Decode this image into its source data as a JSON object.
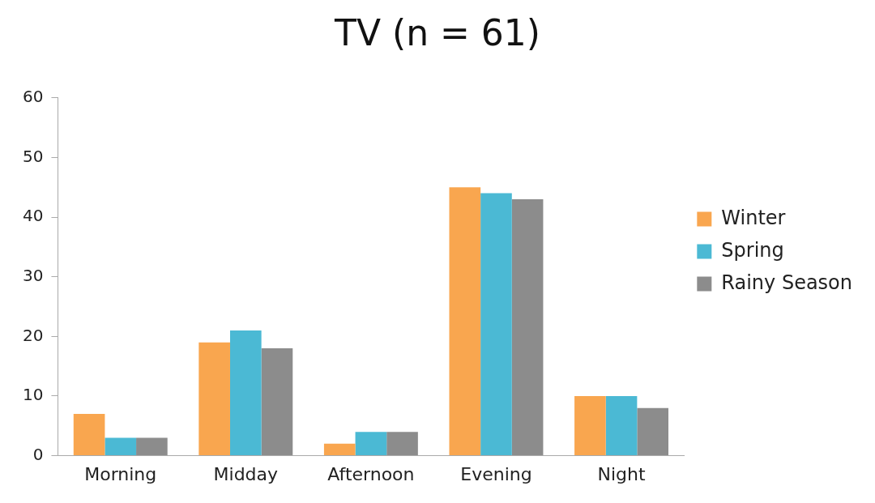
{
  "chart_data": {
    "type": "bar",
    "title": "TV (n = 61)",
    "categories": [
      "Morning",
      "Midday",
      "Afternoon",
      "Evening",
      "Night"
    ],
    "series": [
      {
        "name": "Winter",
        "color": "#f9a64f",
        "values": [
          7,
          19,
          2,
          45,
          10
        ]
      },
      {
        "name": "Spring",
        "color": "#4bb9d4",
        "values": [
          3,
          21,
          4,
          44,
          10
        ]
      },
      {
        "name": "Rainy Season",
        "color": "#8c8c8c",
        "values": [
          3,
          18,
          4,
          43,
          8
        ]
      }
    ],
    "ylim": [
      0,
      60
    ],
    "yticks": [
      0,
      10,
      20,
      30,
      40,
      50,
      60
    ],
    "grid": false,
    "legend": "right"
  }
}
